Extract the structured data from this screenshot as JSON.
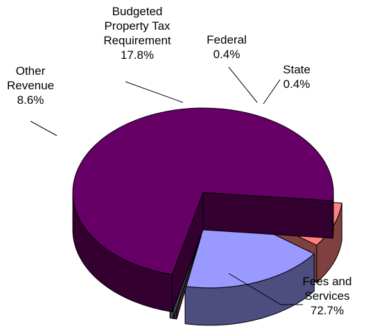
{
  "chart_data": {
    "type": "pie",
    "title": "",
    "series": [
      {
        "slices": [
          {
            "label": [
              "Fees and",
              "Services"
            ],
            "value_label": "72.7%",
            "value": 72.7,
            "color": "#660066",
            "side_color": "#33002f"
          },
          {
            "label": [
              "Other",
              "Revenue"
            ],
            "value_label": "8.6%",
            "value": 8.6,
            "color": "#ff8080",
            "side_color": "#804040"
          },
          {
            "label": [
              "Budgeted",
              "Property Tax",
              "Requirement"
            ],
            "value_label": "17.8%",
            "value": 17.8,
            "color": "#9999ff",
            "side_color": "#4d4d80"
          },
          {
            "label": [
              "Federal"
            ],
            "value_label": "0.4%",
            "value": 0.4,
            "color": "#993366",
            "side_color": "#4d1a33"
          },
          {
            "label": [
              "State"
            ],
            "value_label": "0.4%",
            "value": 0.4,
            "color": "#669999",
            "side_color": "#334d4d"
          }
        ]
      }
    ],
    "style": "3d-exploded-pie",
    "legend": "none",
    "labels": "outside-with-leader-lines"
  }
}
